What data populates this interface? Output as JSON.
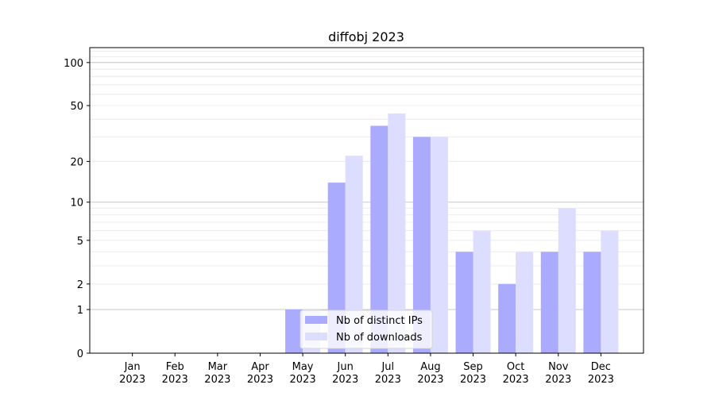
{
  "chart_data": {
    "type": "bar",
    "title": "diffobj 2023",
    "xlabel": "",
    "ylabel": "",
    "yscale": "log(1+y)",
    "ylim": [
      0,
      127
    ],
    "yticks": [
      0,
      1,
      2,
      5,
      10,
      20,
      50,
      100
    ],
    "ytick_labels": [
      "0",
      "1",
      "2",
      "5",
      "10",
      "20",
      "50",
      "100"
    ],
    "categories": [
      "Jan\n2023",
      "Feb\n2023",
      "Mar\n2023",
      "Apr\n2023",
      "May\n2023",
      "Jun\n2023",
      "Jul\n2023",
      "Aug\n2023",
      "Sep\n2023",
      "Oct\n2023",
      "Nov\n2023",
      "Dec\n2023"
    ],
    "category_labels": [
      [
        "Jan",
        "2023"
      ],
      [
        "Feb",
        "2023"
      ],
      [
        "Mar",
        "2023"
      ],
      [
        "Apr",
        "2023"
      ],
      [
        "May",
        "2023"
      ],
      [
        "Jun",
        "2023"
      ],
      [
        "Jul",
        "2023"
      ],
      [
        "Aug",
        "2023"
      ],
      [
        "Sep",
        "2023"
      ],
      [
        "Oct",
        "2023"
      ],
      [
        "Nov",
        "2023"
      ],
      [
        "Dec",
        "2023"
      ]
    ],
    "series": [
      {
        "name": "Nb of distinct IPs",
        "color": "#aaaaff",
        "values": [
          0,
          0,
          0,
          0,
          1,
          14,
          36,
          30,
          4,
          2,
          4,
          4
        ]
      },
      {
        "name": "Nb of downloads",
        "color": "#ddddff",
        "values": [
          0,
          0,
          0,
          0,
          1,
          22,
          44,
          30,
          6,
          4,
          9,
          6
        ]
      }
    ],
    "grid": true,
    "legend_position": "bottom-center"
  }
}
